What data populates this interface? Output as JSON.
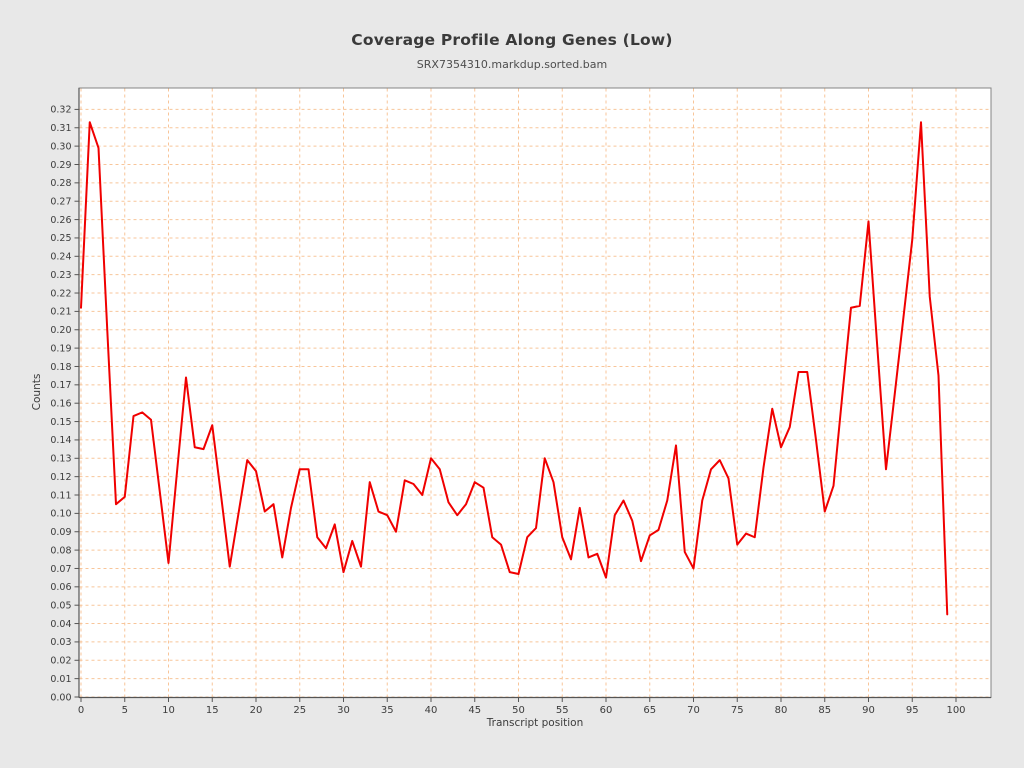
{
  "window": {
    "background": "#e8e8e8"
  },
  "header": {
    "title": "Coverage Profile Along Genes (Low)",
    "subtitle": "SRX7354310.markdup.sorted.bam"
  },
  "chart_data": {
    "type": "line",
    "title": "Coverage Profile Along Genes (Low)",
    "subtitle": "SRX7354310.markdup.sorted.bam",
    "xlabel": "Transcript position",
    "ylabel": "Counts",
    "x_start": 0,
    "x_step": 1,
    "xlim": [
      0,
      99
    ],
    "ylim": [
      0.0,
      0.32
    ],
    "x_ticks": [
      0,
      5,
      10,
      15,
      20,
      25,
      30,
      35,
      40,
      45,
      50,
      55,
      60,
      65,
      70,
      75,
      80,
      85,
      90,
      95,
      100
    ],
    "y_ticks": [
      "0.00",
      "0.01",
      "0.02",
      "0.03",
      "0.04",
      "0.05",
      "0.06",
      "0.07",
      "0.08",
      "0.09",
      "0.10",
      "0.11",
      "0.12",
      "0.13",
      "0.14",
      "0.15",
      "0.16",
      "0.17",
      "0.18",
      "0.19",
      "0.20",
      "0.21",
      "0.22",
      "0.23",
      "0.24",
      "0.25",
      "0.26",
      "0.27",
      "0.28",
      "0.29",
      "0.30",
      "0.31",
      "0.32"
    ],
    "grid": {
      "on": true,
      "color": "#f8c599",
      "dashed": true
    },
    "plot_background": "#ffffff",
    "series": [
      {
        "name": "SRX7354310.markdup.sorted.bam",
        "color": "#f00000",
        "values": [
          0.212,
          0.313,
          0.299,
          0.2,
          0.105,
          0.109,
          0.153,
          0.155,
          0.151,
          0.112,
          0.073,
          0.124,
          0.174,
          0.136,
          0.135,
          0.148,
          0.11,
          0.071,
          0.1,
          0.129,
          0.123,
          0.101,
          0.105,
          0.076,
          0.103,
          0.124,
          0.124,
          0.087,
          0.081,
          0.094,
          0.068,
          0.085,
          0.071,
          0.117,
          0.101,
          0.099,
          0.09,
          0.118,
          0.116,
          0.11,
          0.13,
          0.124,
          0.106,
          0.099,
          0.105,
          0.117,
          0.114,
          0.087,
          0.083,
          0.068,
          0.067,
          0.087,
          0.092,
          0.13,
          0.117,
          0.087,
          0.075,
          0.103,
          0.076,
          0.078,
          0.065,
          0.099,
          0.107,
          0.096,
          0.074,
          0.088,
          0.091,
          0.107,
          0.137,
          0.079,
          0.07,
          0.107,
          0.124,
          0.129,
          0.119,
          0.083,
          0.089,
          0.087,
          0.125,
          0.157,
          0.136,
          0.147,
          0.177,
          0.177,
          0.14,
          0.101,
          0.115,
          0.164,
          0.212,
          0.213,
          0.259,
          0.191,
          0.124,
          0.165,
          0.207,
          0.249,
          0.313,
          0.218,
          0.175,
          0.045
        ]
      }
    ]
  }
}
